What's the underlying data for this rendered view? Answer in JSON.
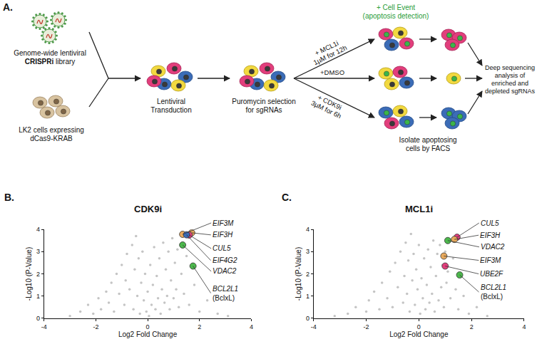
{
  "panel_a": {
    "panel_label": "A.",
    "library_lines": [
      "Genome-wide lentiviral",
      "CRISPRi library"
    ],
    "library_bold": "CRISPRi",
    "cells_lines": [
      "LK2 cells expressing",
      "dCas9-KRAB"
    ],
    "transduction_lines": [
      "Lentiviral",
      "Transduction"
    ],
    "selection_lines": [
      "Puromycin selection",
      "for sgRNAs"
    ],
    "cell_event_lines": [
      "+ Cell Event",
      "(apoptosis detection)"
    ],
    "mcl1i_lines": [
      "+ MCL1i",
      "1µM for 12h"
    ],
    "dmso_lines": [
      "+DMSO"
    ],
    "cdk9i_lines": [
      "+ CDK9i",
      "3µM for 6h"
    ],
    "facs_lines": [
      "Isolate apoptosing",
      "cells by FACS"
    ],
    "sequencing_lines": [
      "Deep sequencing",
      "analysis of",
      "enriched and",
      "depleted sgRNAs"
    ]
  },
  "chart_data": [
    {
      "type": "scatter",
      "panel_label": "B.",
      "title": "CDK9i",
      "x_label": "Log2 Fold Change",
      "y_label": "-Log10 (P-Value)",
      "xlim": [
        -4,
        4
      ],
      "xticks": [
        -4,
        -2,
        0,
        2,
        4
      ],
      "ylim": [
        0,
        4
      ],
      "yticks": [
        0,
        1,
        2,
        3,
        4
      ],
      "grid": false,
      "series": [
        {
          "color": "#c4c4c4",
          "x": [
            -3.0,
            -2.6,
            -2.3,
            -2.1,
            -1.9,
            -1.8,
            -1.6,
            -1.5,
            -1.4,
            -1.3,
            -1.2,
            -1.1,
            -1.0,
            -0.9,
            -0.85,
            -0.8,
            -0.7,
            -0.6,
            -0.55,
            -0.5,
            -0.45,
            -0.4,
            -0.35,
            -0.3,
            -0.25,
            -0.2,
            -0.15,
            -0.1,
            -0.05,
            0.0,
            0.05,
            0.1,
            0.15,
            0.2,
            0.25,
            0.3,
            0.35,
            0.4,
            0.45,
            0.5,
            0.55,
            0.6,
            0.65,
            0.7,
            0.75,
            0.8,
            0.85,
            0.9,
            0.95,
            1.0,
            1.05,
            1.1,
            1.15,
            1.2,
            1.3,
            1.4,
            1.5,
            1.6,
            1.8,
            2.0,
            2.3,
            2.7,
            3.1
          ],
          "y": [
            0.1,
            0.3,
            0.6,
            0.2,
            0.9,
            0.4,
            1.2,
            0.7,
            1.6,
            0.3,
            2.0,
            1.1,
            2.4,
            0.6,
            1.7,
            2.9,
            1.3,
            3.3,
            0.4,
            2.2,
            3.7,
            1.0,
            2.7,
            0.2,
            1.6,
            3.0,
            0.8,
            2.0,
            0.3,
            1.2,
            0.1,
            2.4,
            0.6,
            1.5,
            3.2,
            0.4,
            1.9,
            0.9,
            2.7,
            0.2,
            1.3,
            3.4,
            0.7,
            2.2,
            1.0,
            3.0,
            0.4,
            1.7,
            3.6,
            0.9,
            2.5,
            1.3,
            3.1,
            0.5,
            2.0,
            1.1,
            2.8,
            0.6,
            1.5,
            0.3,
            0.8,
            0.2,
            0.1
          ]
        }
      ],
      "highlights": [
        {
          "label": "EIF3M",
          "color": "#e8a95c",
          "x": 1.35,
          "y": 3.78
        },
        {
          "label": "EIF3H",
          "color": "#e8a95c",
          "x": 1.7,
          "y": 3.85
        },
        {
          "label": "CUL5",
          "color": "#e23e7c",
          "x": 1.6,
          "y": 3.75
        },
        {
          "label": "EIF4G2",
          "color": "#3b6cb7",
          "x": 1.5,
          "y": 3.76
        },
        {
          "label": "VDAC2",
          "color": "#4cb84c",
          "x": 1.35,
          "y": 3.3
        },
        {
          "label": "BCL2L1",
          "sublabel": "(BclxL)",
          "color": "#4cb84c",
          "x": 1.75,
          "y": 2.35
        }
      ]
    },
    {
      "type": "scatter",
      "panel_label": "C.",
      "title": "MCL1i",
      "x_label": "Log2 Fold Change",
      "y_label": "-Log10 (P-Value)",
      "xlim": [
        -4,
        4
      ],
      "xticks": [
        -4,
        -2,
        0,
        2,
        4
      ],
      "ylim": [
        0,
        4
      ],
      "yticks": [
        0,
        1,
        2,
        3,
        4
      ],
      "grid": false,
      "series": [
        {
          "color": "#c4c4c4",
          "x": [
            -3.2,
            -2.7,
            -2.4,
            -2.0,
            -1.9,
            -1.7,
            -1.5,
            -1.4,
            -1.2,
            -1.1,
            -1.0,
            -0.9,
            -0.8,
            -0.7,
            -0.6,
            -0.55,
            -0.5,
            -0.45,
            -0.4,
            -0.35,
            -0.3,
            -0.25,
            -0.2,
            -0.15,
            -0.1,
            -0.05,
            0.0,
            0.05,
            0.1,
            0.15,
            0.2,
            0.25,
            0.3,
            0.35,
            0.4,
            0.45,
            0.5,
            0.55,
            0.6,
            0.65,
            0.7,
            0.75,
            0.8,
            0.85,
            0.9,
            0.95,
            1.0,
            1.05,
            1.1,
            1.2,
            1.3,
            1.4,
            1.5,
            1.7,
            1.9,
            2.2,
            2.6
          ],
          "y": [
            0.1,
            0.2,
            0.5,
            0.3,
            0.8,
            1.2,
            0.4,
            1.6,
            0.9,
            2.1,
            0.5,
            2.5,
            1.4,
            3.0,
            0.7,
            1.9,
            3.4,
            1.1,
            2.6,
            0.3,
            3.8,
            1.7,
            2.9,
            0.6,
            2.2,
            1.3,
            3.3,
            0.2,
            1.8,
            0.9,
            2.7,
            0.4,
            1.5,
            3.1,
            0.7,
            2.3,
            1.1,
            3.5,
            0.3,
            1.9,
            2.9,
            0.8,
            3.3,
            1.4,
            2.4,
            0.5,
            3.0,
            1.6,
            2.1,
            0.9,
            2.7,
            1.3,
            0.4,
            1.0,
            0.2,
            0.5,
            0.1
          ]
        }
      ],
      "highlights": [
        {
          "label": "CUL5",
          "color": "#e23e7c",
          "x": 1.45,
          "y": 3.65
        },
        {
          "label": "EIF3H",
          "color": "#e8a95c",
          "x": 1.35,
          "y": 3.55
        },
        {
          "label": "VDAC2",
          "color": "#4cb84c",
          "x": 1.1,
          "y": 3.5
        },
        {
          "label": "EIF3M",
          "color": "#e8a95c",
          "x": 0.95,
          "y": 2.8
        },
        {
          "label": "UBE2F",
          "color": "#e23e7c",
          "x": 1.0,
          "y": 2.35
        },
        {
          "label": "BCL2L1",
          "sublabel": "(BclxL)",
          "color": "#4cb84c",
          "x": 1.55,
          "y": 1.95
        }
      ]
    }
  ]
}
